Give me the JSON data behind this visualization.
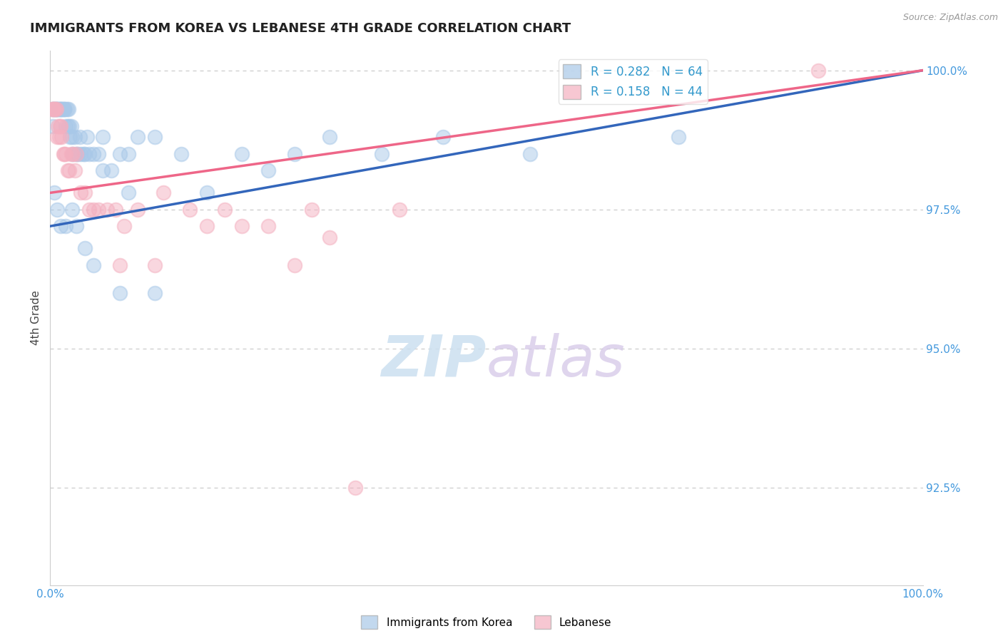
{
  "title": "IMMIGRANTS FROM KOREA VS LEBANESE 4TH GRADE CORRELATION CHART",
  "source_text": "Source: ZipAtlas.com",
  "ylabel": "4th Grade",
  "watermark_zip": "ZIP",
  "watermark_atlas": "atlas",
  "xlim": [
    0.0,
    1.0
  ],
  "ylim": [
    0.9075,
    1.0035
  ],
  "yticks": [
    0.925,
    0.95,
    0.975,
    1.0
  ],
  "ytick_labels": [
    "92.5%",
    "95.0%",
    "97.5%",
    "100.0%"
  ],
  "xtick_labels": [
    "0.0%",
    "100.0%"
  ],
  "legend_blue_label": "Immigrants from Korea",
  "legend_pink_label": "Lebanese",
  "R_blue": 0.282,
  "N_blue": 64,
  "R_pink": 0.158,
  "N_pink": 44,
  "blue_color": "#a8c8e8",
  "pink_color": "#f4b0c0",
  "line_blue": "#3366bb",
  "line_pink": "#ee6688",
  "blue_line_start_y": 0.972,
  "blue_line_end_y": 1.0,
  "pink_line_start_y": 0.978,
  "pink_line_end_y": 1.0,
  "blue_points_x": [
    0.002,
    0.003,
    0.004,
    0.005,
    0.006,
    0.007,
    0.008,
    0.009,
    0.01,
    0.011,
    0.012,
    0.013,
    0.014,
    0.015,
    0.016,
    0.017,
    0.018,
    0.019,
    0.02,
    0.021,
    0.022,
    0.023,
    0.024,
    0.025,
    0.026,
    0.028,
    0.03,
    0.032,
    0.034,
    0.035,
    0.038,
    0.04,
    0.042,
    0.045,
    0.05,
    0.055,
    0.06,
    0.07,
    0.08,
    0.09,
    0.1,
    0.12,
    0.15,
    0.18,
    0.22,
    0.25,
    0.28,
    0.32,
    0.38,
    0.45,
    0.005,
    0.008,
    0.012,
    0.018,
    0.025,
    0.03,
    0.04,
    0.05,
    0.08,
    0.12,
    0.06,
    0.09,
    0.55,
    0.72
  ],
  "blue_points_y": [
    0.993,
    0.99,
    0.993,
    0.993,
    0.993,
    0.993,
    0.993,
    0.993,
    0.993,
    0.993,
    0.993,
    0.993,
    0.993,
    0.993,
    0.993,
    0.993,
    0.99,
    0.993,
    0.99,
    0.993,
    0.99,
    0.988,
    0.99,
    0.988,
    0.985,
    0.988,
    0.985,
    0.985,
    0.988,
    0.985,
    0.985,
    0.985,
    0.988,
    0.985,
    0.985,
    0.985,
    0.988,
    0.982,
    0.985,
    0.985,
    0.988,
    0.988,
    0.985,
    0.978,
    0.985,
    0.982,
    0.985,
    0.988,
    0.985,
    0.988,
    0.978,
    0.975,
    0.972,
    0.972,
    0.975,
    0.972,
    0.968,
    0.965,
    0.96,
    0.96,
    0.982,
    0.978,
    0.985,
    0.988
  ],
  "pink_points_x": [
    0.002,
    0.003,
    0.004,
    0.005,
    0.006,
    0.007,
    0.008,
    0.009,
    0.01,
    0.011,
    0.012,
    0.013,
    0.015,
    0.016,
    0.018,
    0.02,
    0.022,
    0.024,
    0.026,
    0.028,
    0.03,
    0.035,
    0.04,
    0.045,
    0.05,
    0.055,
    0.065,
    0.075,
    0.085,
    0.1,
    0.13,
    0.16,
    0.2,
    0.25,
    0.3,
    0.35,
    0.4,
    0.28,
    0.32,
    0.22,
    0.18,
    0.08,
    0.12,
    0.88
  ],
  "pink_points_y": [
    0.993,
    0.993,
    0.993,
    0.993,
    0.993,
    0.993,
    0.988,
    0.99,
    0.988,
    0.99,
    0.99,
    0.988,
    0.985,
    0.985,
    0.985,
    0.982,
    0.982,
    0.985,
    0.985,
    0.982,
    0.985,
    0.978,
    0.978,
    0.975,
    0.975,
    0.975,
    0.975,
    0.975,
    0.972,
    0.975,
    0.978,
    0.975,
    0.975,
    0.972,
    0.975,
    0.925,
    0.975,
    0.965,
    0.97,
    0.972,
    0.972,
    0.965,
    0.965,
    1.0
  ]
}
